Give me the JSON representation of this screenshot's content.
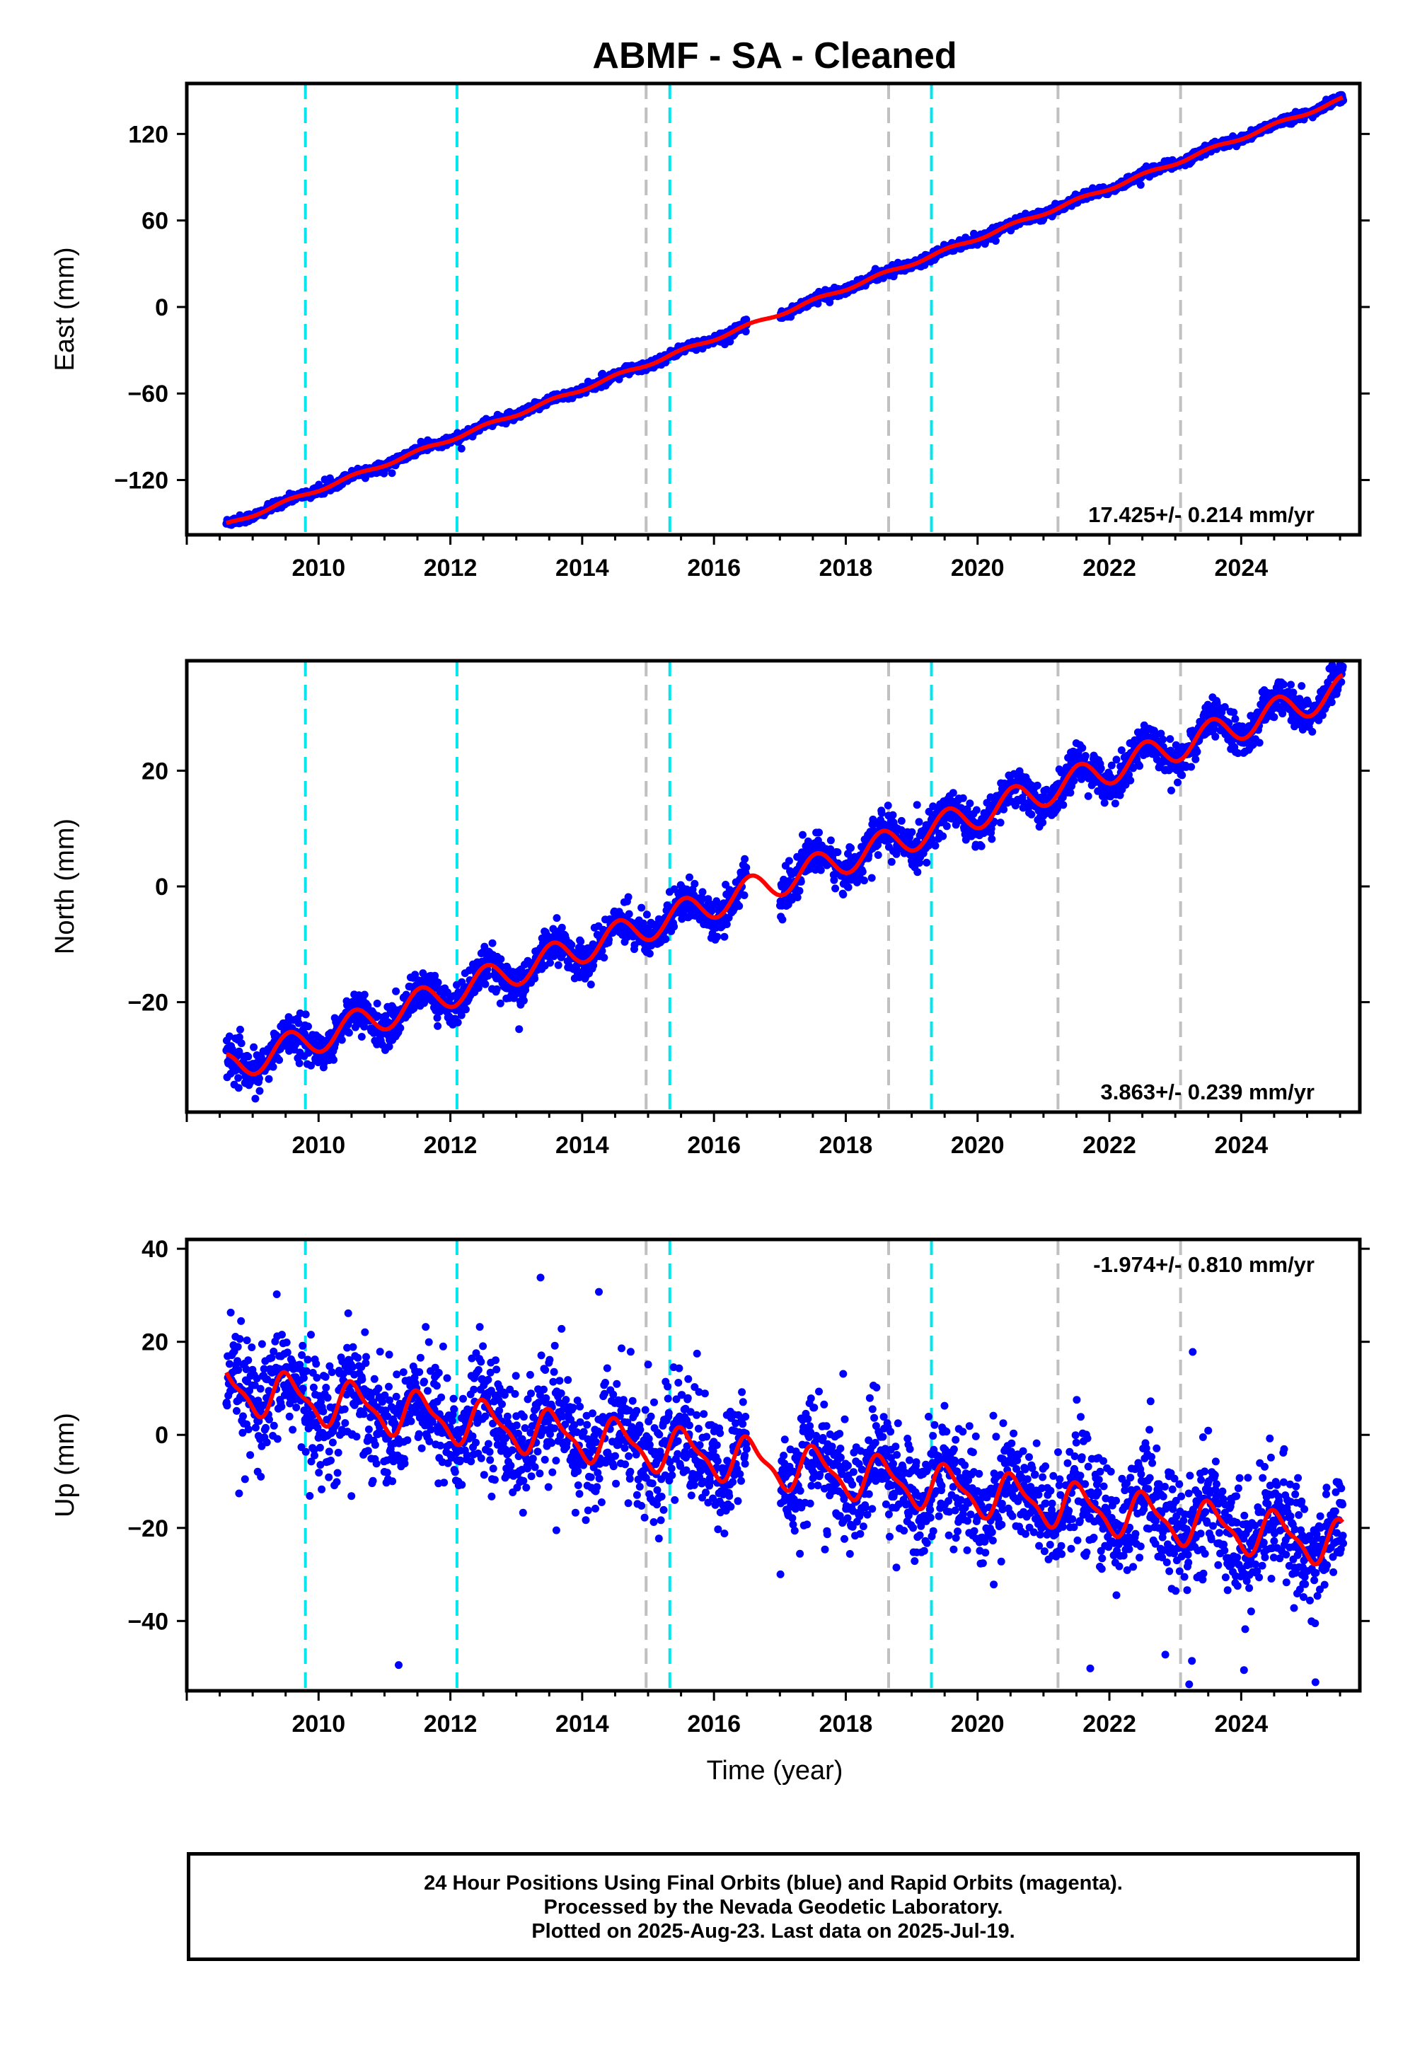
{
  "title": "ABMF  - SA - Cleaned",
  "xlabel": "Time (year)",
  "footer": {
    "line1": "24 Hour Positions Using Final Orbits (blue) and Rapid Orbits (magenta).",
    "line2": "Processed by the Nevada Geodetic Laboratory.",
    "line3": "Plotted on 2025-Aug-23. Last data on 2025-Jul-19."
  },
  "colors": {
    "points": "#0000ff",
    "fit": "#ff0000",
    "cyan_lines": "#00e5ee",
    "gray_lines": "#c0c0c0"
  },
  "chart_data": [
    {
      "type": "scatter",
      "component": "east",
      "ylabel": "East (mm)",
      "xlim": [
        2008.0,
        2025.8
      ],
      "ylim": [
        -158,
        155
      ],
      "yticks": [
        -120,
        -60,
        0,
        60,
        120
      ],
      "xticks": [
        2010,
        2012,
        2014,
        2016,
        2018,
        2020,
        2022,
        2024
      ],
      "rate_label": "17.425+/- 0.214 mm/yr",
      "rate_position": "bottom-right",
      "fit_start": [
        2008.6,
        -151
      ],
      "fit_slope": 17.425,
      "seasonal_amplitude": 1.2,
      "noise": 1.5,
      "data_gap": [
        2016.5,
        2017.0
      ],
      "cyan_lines_x": [
        2009.8,
        2012.1,
        2015.33,
        2019.3
      ],
      "gray_lines_x": [
        2014.97,
        2018.65,
        2021.22,
        2023.08
      ]
    },
    {
      "type": "scatter",
      "component": "north",
      "ylabel": "North (mm)",
      "xlim": [
        2008.0,
        2025.8
      ],
      "ylim": [
        -39,
        39
      ],
      "yticks": [
        -20,
        0,
        20
      ],
      "xticks": [
        2010,
        2012,
        2014,
        2016,
        2018,
        2020,
        2022,
        2024
      ],
      "rate_label": "3.863+/- 0.239 mm/yr",
      "rate_position": "bottom-right",
      "fit_start": [
        2008.6,
        -31.5
      ],
      "fit_slope": 3.863,
      "seasonal_amplitude": 2.6,
      "noise": 1.6,
      "data_gap": [
        2016.5,
        2017.0
      ],
      "cyan_lines_x": [
        2009.8,
        2012.1,
        2015.33,
        2019.3
      ],
      "gray_lines_x": [
        2014.97,
        2018.65,
        2021.22,
        2023.08
      ]
    },
    {
      "type": "scatter",
      "component": "up",
      "ylabel": "Up (mm)",
      "xlim": [
        2008.0,
        2025.8
      ],
      "ylim": [
        -55,
        42
      ],
      "yticks": [
        -40,
        -20,
        0,
        20,
        40
      ],
      "xticks": [
        2010,
        2012,
        2014,
        2016,
        2018,
        2020,
        2022,
        2024
      ],
      "rate_label": "-1.974+/- 0.810 mm/yr",
      "rate_position": "top-right",
      "fit_start": [
        2008.6,
        10
      ],
      "fit_slope": -1.974,
      "seasonal_amplitude": 4.5,
      "noise": 6.0,
      "data_gap": [
        2016.5,
        2017.0
      ],
      "cyan_lines_x": [
        2009.8,
        2012.1,
        2015.33,
        2019.3
      ],
      "gray_lines_x": [
        2014.97,
        2018.65,
        2021.22,
        2023.08
      ]
    }
  ]
}
